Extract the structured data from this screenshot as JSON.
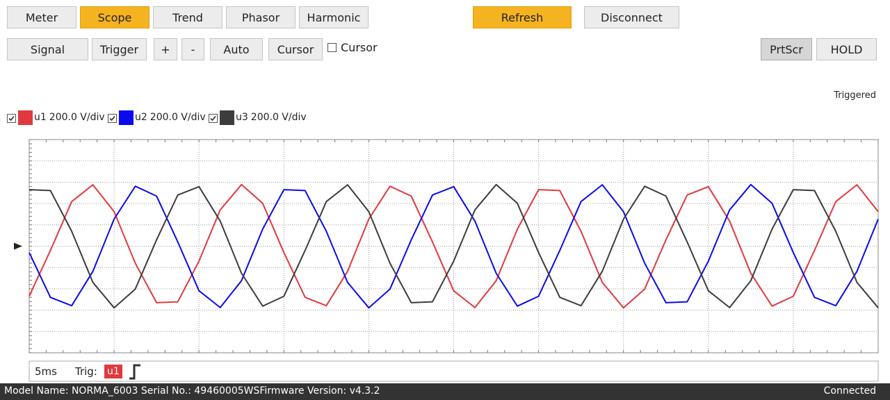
{
  "tabs": [
    "Meter",
    "Scope",
    "Trend",
    "Phasor",
    "Harmonic"
  ],
  "connection_buttons": [
    "Refresh",
    "Disconnect"
  ],
  "toolbar": [
    "Signal",
    "Trigger",
    "+",
    "-",
    "Auto",
    "Cursor"
  ],
  "cursor_checkbox": "Cursor",
  "right_buttons": [
    "PrtScr",
    "HOLD"
  ],
  "trigger_status": "Triggered",
  "scope": {
    "traces": [
      {
        "name": "u1",
        "scale": "200.0 V/div",
        "color": "#e0393e",
        "values": [
          -2.35,
          -0.2,
          2.09,
          2.88,
          1.62,
          -0.8,
          -2.65,
          -2.61,
          -0.7,
          1.7,
          2.89,
          2.01,
          -0.3,
          -2.4,
          -2.79,
          -1.18,
          1.27,
          2.81,
          2.35,
          0.2,
          -2.09,
          -2.88,
          -1.62,
          0.8,
          2.65,
          2.61,
          0.7,
          -1.7,
          -2.89,
          -2.01,
          0.3,
          2.4,
          2.79,
          1.18,
          -1.27,
          -2.81,
          -2.35,
          -0.2,
          2.09,
          2.88,
          1.62
        ]
      },
      {
        "name": "u2",
        "scale": "200.0 V/div",
        "color": "#0a0aee",
        "values": [
          -0.3,
          -2.4,
          -2.79,
          -1.18,
          1.27,
          2.81,
          2.35,
          0.2,
          -2.09,
          -2.88,
          -1.62,
          0.8,
          2.65,
          2.61,
          0.7,
          -1.7,
          -2.89,
          -2.01,
          0.3,
          2.4,
          2.79,
          1.18,
          -1.27,
          -2.81,
          -2.35,
          -0.2,
          2.09,
          2.88,
          1.62,
          -0.8,
          -2.65,
          -2.61,
          -0.7,
          1.7,
          2.89,
          2.01,
          -0.3,
          -2.4,
          -2.79,
          -1.18,
          1.27
        ]
      },
      {
        "name": "u3",
        "scale": "200.0 V/div",
        "color": "#3c3c3c",
        "values": [
          2.65,
          2.61,
          0.7,
          -1.7,
          -2.89,
          -2.01,
          0.3,
          2.4,
          2.79,
          1.18,
          -1.27,
          -2.81,
          -2.35,
          -0.2,
          2.09,
          2.88,
          1.62,
          -0.8,
          -2.65,
          -2.61,
          -0.7,
          1.7,
          2.89,
          2.01,
          -0.3,
          -2.4,
          -2.79,
          -1.18,
          1.27,
          2.81,
          2.35,
          0.2,
          -2.09,
          -2.88,
          -1.62,
          0.8,
          2.65,
          2.61,
          0.7,
          -1.7,
          -2.89
        ]
      }
    ],
    "x": [
      0,
      0.25,
      0.5,
      0.75,
      1,
      1.25,
      1.5,
      1.75,
      2,
      2.25,
      2.5,
      2.75,
      3,
      3.25,
      3.5,
      3.75,
      4,
      4.25,
      4.5,
      4.75,
      5,
      5.25,
      5.5,
      5.75,
      6,
      6.25,
      6.5,
      6.75,
      7,
      7.25,
      7.5,
      7.75,
      8,
      8.25,
      8.5,
      8.75,
      9,
      9.25,
      9.5,
      9.75,
      10
    ],
    "xlim": [
      0,
      10
    ],
    "ylim": [
      -5,
      5
    ],
    "timebase": "5ms",
    "trigger_label": "Trig:",
    "trigger_source": "u1"
  },
  "status_bar": {
    "info": "Model Name:  NORMA_6003 Serial No.:  49460005WSFirmware Version:  v4.3.2",
    "connection": "Connected"
  }
}
